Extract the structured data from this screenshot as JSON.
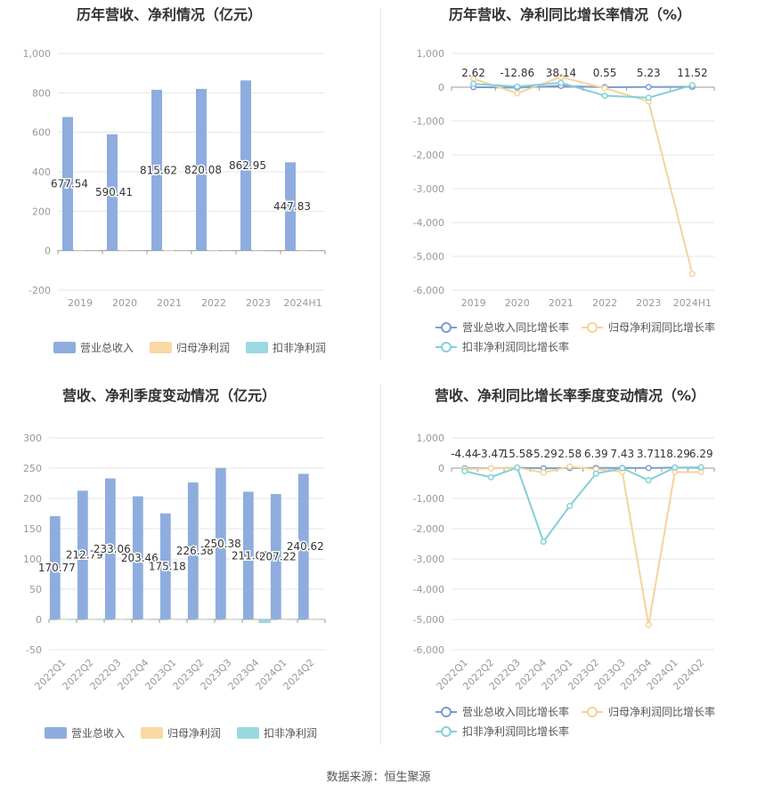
{
  "source_text": "数据来源：恒生聚源",
  "colors": {
    "revenue": "#8eadde",
    "net_profit": "#f9d9a1",
    "deducted": "#9ad9e2",
    "line_revenue": "#7e9ccd",
    "line_net": "#f5d49a",
    "line_deducted": "#84cfd9"
  },
  "chart_data": [
    {
      "id": "annual-bars",
      "type": "bar",
      "title": "历年营收、净利情况（亿元）",
      "categories": [
        "2019",
        "2020",
        "2021",
        "2022",
        "2023",
        "2024H1"
      ],
      "ylim": [
        -200,
        1000
      ],
      "yticks": [
        "-200",
        "0",
        "200",
        "400",
        "600",
        "800",
        "1,000"
      ],
      "series": [
        {
          "name": "营业总收入",
          "values": [
            677.54,
            590.41,
            815.62,
            820.08,
            862.95,
            447.83
          ],
          "labels": [
            "677.54",
            "590.41",
            "815.62",
            "820.08",
            "862.95",
            "447.83"
          ]
        },
        {
          "name": "归母净利润",
          "values": [
            0.8,
            0.9,
            1.3,
            1.3,
            0.5,
            0.3
          ],
          "labels": []
        },
        {
          "name": "扣非净利润",
          "values": [
            0.5,
            0.6,
            0.9,
            0.7,
            -1.5,
            0.2
          ],
          "labels": []
        }
      ],
      "legend": "bottom"
    },
    {
      "id": "annual-lines",
      "type": "line",
      "title": "历年营收、净利同比增长率情况（%）",
      "categories": [
        "2019",
        "2020",
        "2021",
        "2022",
        "2023",
        "2024H1"
      ],
      "ylim": [
        -6000,
        1000
      ],
      "yticks": [
        "-6,000",
        "-5,000",
        "-4,000",
        "-3,000",
        "-2,000",
        "-1,000",
        "0",
        "1,000"
      ],
      "series": [
        {
          "name": "营业总收入同比增长率",
          "values": [
            2.62,
            -12.86,
            38.14,
            0.55,
            5.23,
            11.52
          ],
          "labels": [
            "2.62",
            "-12.86",
            "38.14",
            "0.55",
            "5.23",
            "11.52"
          ]
        },
        {
          "name": "归母净利润同比增长率",
          "values": [
            250,
            -180,
            300,
            -30,
            -420,
            -5520
          ],
          "labels": []
        },
        {
          "name": "扣非净利润同比增长率",
          "values": [
            100,
            20,
            130,
            -250,
            -310,
            60
          ],
          "labels": []
        }
      ],
      "legend": "bottom"
    },
    {
      "id": "quarterly-bars",
      "type": "bar",
      "title": "营收、净利季度变动情况（亿元）",
      "categories": [
        "2022Q1",
        "2022Q2",
        "2022Q3",
        "2022Q4",
        "2023Q1",
        "2023Q2",
        "2023Q3",
        "2023Q4",
        "2024Q1",
        "2024Q2"
      ],
      "ylim": [
        -50,
        300
      ],
      "yticks": [
        "-50",
        "0",
        "50",
        "100",
        "150",
        "200",
        "250",
        "300"
      ],
      "series": [
        {
          "name": "营业总收入",
          "values": [
            170.77,
            212.79,
            233.06,
            203.46,
            175.18,
            226.38,
            250.38,
            211.02,
            207.22,
            240.62
          ],
          "labels": [
            "170.77",
            "212.79",
            "233.06",
            "203.46",
            "175.18",
            "226.38",
            "250.38",
            "211.02",
            "207.22",
            "240.62"
          ]
        },
        {
          "name": "归母净利润",
          "values": [
            0.3,
            0.3,
            0.4,
            0.2,
            0.3,
            0.3,
            0.3,
            -1.5,
            0.1,
            0.1
          ],
          "labels": []
        },
        {
          "name": "扣非净利润",
          "values": [
            0.2,
            0.2,
            0.3,
            -0.3,
            0.1,
            0.2,
            0.2,
            -6.0,
            0.1,
            0.1
          ],
          "labels": []
        }
      ],
      "legend": "bottom"
    },
    {
      "id": "quarterly-lines",
      "type": "line",
      "title": "营收、净利同比增长率季度变动情况（%）",
      "categories": [
        "2022Q1",
        "2022Q2",
        "2022Q3",
        "2022Q4",
        "2023Q1",
        "2023Q2",
        "2023Q3",
        "2023Q4",
        "2024Q1",
        "2024Q2"
      ],
      "ylim": [
        -6000,
        1000
      ],
      "yticks": [
        "-6,000",
        "-5,000",
        "-4,000",
        "-3,000",
        "-2,000",
        "-1,000",
        "0",
        "1,000"
      ],
      "series": [
        {
          "name": "营业总收入同比增长率",
          "values": [
            -4.44,
            -3.47,
            15.58,
            -5.29,
            2.58,
            6.39,
            7.43,
            3.71,
            18.29,
            6.29
          ],
          "labels": [
            "-4.44",
            "-3.47",
            "15.58",
            "-5.29",
            "2.58",
            "6.39",
            "7.43",
            "3.71",
            "18.29",
            "6.29"
          ]
        },
        {
          "name": "归母净利润同比增长率",
          "values": [
            -30,
            -10,
            20,
            -150,
            50,
            -40,
            -120,
            -5180,
            -130,
            -130
          ],
          "labels": []
        },
        {
          "name": "扣非净利润同比增长率",
          "values": [
            -100,
            -300,
            20,
            -2430,
            -1250,
            -180,
            0,
            -400,
            20,
            30
          ],
          "labels": []
        }
      ],
      "legend": "bottom"
    }
  ]
}
